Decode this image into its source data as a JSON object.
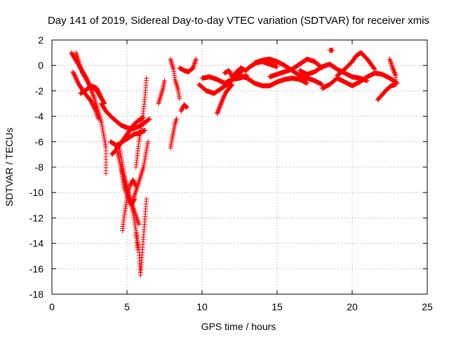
{
  "chart_data": {
    "type": "scatter",
    "title": "Day 141 of 2019, Sidereal Day-to-day VTEC variation (SDTVAR) for receiver xmis",
    "xlabel": "GPS time / hours",
    "ylabel": "SDTVAR / TECUs",
    "xlim": [
      0,
      25
    ],
    "ylim": [
      -18,
      2
    ],
    "xticks": [
      0,
      5,
      10,
      15,
      20,
      25
    ],
    "yticks": [
      2,
      0,
      -2,
      -4,
      -6,
      -8,
      -10,
      -12,
      -14,
      -16,
      -18
    ],
    "grid": true,
    "marker": "+",
    "series": [
      {
        "name": "SDTVAR",
        "color": "#ff0000",
        "segments": [
          {
            "x": [
              1.3,
              1.8,
              2.3,
              2.8,
              3.3,
              3.6,
              3.6
            ],
            "y": [
              1.0,
              0.0,
              -1.0,
              -2.5,
              -4.5,
              -6.5,
              -8.5
            ]
          },
          {
            "x": [
              1.4,
              1.8,
              2.2,
              2.6,
              2.9,
              3.1
            ],
            "y": [
              -0.5,
              -1.5,
              -2.2,
              -2.8,
              -3.5,
              -4.2
            ]
          },
          {
            "x": [
              1.6,
              2.0,
              2.5,
              3.0,
              3.5
            ],
            "y": [
              1.0,
              -0.5,
              -1.5,
              -2.0,
              -3.0
            ]
          },
          {
            "x": [
              1.9,
              2.2,
              2.6,
              3.0,
              3.3
            ],
            "y": [
              -2.2,
              -2.0,
              -1.6,
              -1.8,
              -2.6
            ]
          },
          {
            "x": [
              3.3,
              3.6,
              4.0,
              4.3,
              4.6,
              5.0,
              5.4,
              5.8,
              6.2,
              6.5
            ],
            "y": [
              -3.0,
              -3.6,
              -4.1,
              -4.4,
              -4.7,
              -4.9,
              -5.0,
              -4.8,
              -4.5,
              -4.2
            ]
          },
          {
            "x": [
              3.9,
              4.3,
              4.7,
              5.1,
              5.5,
              5.9,
              6.2
            ],
            "y": [
              -6.0,
              -6.3,
              -6.0,
              -5.7,
              -5.4,
              -5.3,
              -5.1
            ]
          },
          {
            "x": [
              4.0,
              4.3,
              4.6,
              4.9,
              5.2,
              5.5,
              5.8,
              6.1
            ],
            "y": [
              -7.0,
              -6.6,
              -6.1,
              -5.6,
              -5.1,
              -4.6,
              -4.3,
              -4.1
            ]
          },
          {
            "x": [
              4.3,
              4.6,
              4.9,
              5.2,
              5.5,
              5.8
            ],
            "y": [
              -6.5,
              -8.0,
              -9.5,
              -10.5,
              -11.5,
              -12.5
            ]
          },
          {
            "x": [
              4.5,
              4.8,
              5.1,
              5.4,
              5.6,
              5.7
            ],
            "y": [
              -6.5,
              -8.5,
              -10.0,
              -11.5,
              -13.0,
              -14.5
            ]
          },
          {
            "x": [
              4.6,
              4.8,
              5.1,
              5.3,
              5.5
            ],
            "y": [
              -8.0,
              -9.5,
              -10.5,
              -11.0,
              -10.5
            ]
          },
          {
            "x": [
              4.7,
              4.8,
              5.0,
              5.2,
              5.4,
              5.6
            ],
            "y": [
              -13.0,
              -12.0,
              -10.5,
              -9.5,
              -9.0,
              -9.5
            ]
          },
          {
            "x": [
              5.6,
              5.8,
              6.0,
              6.2,
              6.3
            ],
            "y": [
              -8.0,
              -6.0,
              -4.5,
              -2.5,
              -1.0
            ]
          },
          {
            "x": [
              5.6,
              5.8,
              5.9,
              6.1,
              6.3
            ],
            "y": [
              -13.0,
              -14.5,
              -16.5,
              -13.5,
              -10.5
            ]
          },
          {
            "x": [
              5.3,
              5.7,
              6.1,
              6.4
            ],
            "y": [
              -11.0,
              -9.5,
              -8.0,
              -6.0
            ]
          },
          {
            "x": [
              7.1,
              7.2,
              7.4,
              7.5
            ],
            "y": [
              -3.0,
              -2.6,
              -1.8,
              -1.2
            ]
          },
          {
            "x": [
              7.9,
              8.0,
              8.1,
              8.2,
              8.3
            ],
            "y": [
              -6.5,
              -5.8,
              -5.2,
              -4.6,
              -4.2
            ]
          },
          {
            "x": [
              7.9,
              8.1,
              8.2,
              8.4,
              8.5
            ],
            "y": [
              0.5,
              -0.3,
              -1.1,
              -1.9,
              -2.6
            ]
          },
          {
            "x": [
              8.6,
              8.8,
              9.0
            ],
            "y": [
              -3.6,
              -3.1,
              -3.3
            ]
          },
          {
            "x": [
              8.5,
              8.8,
              9.1,
              9.4,
              9.6
            ],
            "y": [
              -0.2,
              -0.4,
              -0.5,
              -0.2,
              0.5
            ]
          },
          {
            "x": [
              10.0,
              10.5,
              11.0,
              11.5,
              12.0,
              12.5,
              13.0
            ],
            "y": [
              -1.0,
              -0.9,
              -1.1,
              -1.4,
              -1.1,
              -1.0,
              -0.8
            ]
          },
          {
            "x": [
              9.8,
              10.3,
              10.8,
              11.3,
              11.8,
              12.3,
              12.7
            ],
            "y": [
              -1.5,
              -2.0,
              -2.2,
              -1.8,
              -1.4,
              -0.8,
              -0.4
            ]
          },
          {
            "x": [
              11.0,
              11.2,
              11.4,
              11.6,
              11.8,
              12.0
            ],
            "y": [
              -3.8,
              -3.2,
              -2.6,
              -2.1,
              -1.8,
              -1.5
            ]
          },
          {
            "x": [
              11.5,
              11.8,
              12.0,
              12.3,
              12.6,
              12.9,
              13.2,
              13.6,
              14.0,
              14.5,
              15.0
            ],
            "y": [
              -0.6,
              -0.4,
              -0.9,
              -0.5,
              -0.2,
              -0.4,
              -0.1,
              0.2,
              0.3,
              0.1,
              -0.1
            ]
          },
          {
            "x": [
              12.5,
              13.0,
              13.5,
              14.0,
              14.5,
              15.0,
              15.5,
              16.0,
              16.5,
              17.0
            ],
            "y": [
              -0.8,
              -1.0,
              -1.4,
              -1.6,
              -1.6,
              -1.3,
              -1.1,
              -1.0,
              -1.1,
              -1.4
            ]
          },
          {
            "x": [
              13.5,
              14.0,
              14.5,
              15.0,
              15.5,
              16.0,
              16.5,
              17.0,
              17.5,
              18.0
            ],
            "y": [
              0.2,
              0.4,
              0.5,
              0.3,
              0.0,
              -0.4,
              -0.8,
              -1.0,
              -1.2,
              -1.5
            ]
          },
          {
            "x": [
              14.5,
              15.0,
              15.5,
              16.0,
              16.5,
              17.0,
              17.5,
              18.0
            ],
            "y": [
              -0.9,
              -0.7,
              -0.5,
              -0.3,
              0.1,
              0.5,
              0.3,
              -0.2
            ]
          },
          {
            "x": [
              16.5,
              17.0,
              17.5,
              18.0,
              18.5,
              19.0,
              19.5,
              20.0,
              20.5,
              21.0
            ],
            "y": [
              -0.4,
              -0.7,
              -0.5,
              -0.1,
              0.1,
              -0.3,
              -0.6,
              -0.9,
              -1.0,
              -1.2
            ]
          },
          {
            "x": [
              18.0,
              18.5,
              19.0,
              19.5,
              20.0,
              20.5,
              21.0,
              21.5,
              22.0,
              22.5,
              23.0
            ],
            "y": [
              -1.8,
              -1.5,
              -1.0,
              -1.3,
              -1.6,
              -1.3,
              -0.9,
              -0.6,
              -0.7,
              -1.0,
              -1.4
            ]
          },
          {
            "x": [
              18.5,
              18.7
            ],
            "y": [
              1.2,
              1.2
            ]
          },
          {
            "x": [
              19.0,
              19.5,
              20.0,
              20.3,
              20.6,
              21.0,
              21.5
            ],
            "y": [
              -0.8,
              -0.3,
              0.3,
              0.8,
              1.0,
              0.5,
              -0.3
            ]
          },
          {
            "x": [
              21.7,
              22.0,
              22.3,
              22.6,
              22.9
            ],
            "y": [
              -2.7,
              -2.3,
              -1.9,
              -1.6,
              -1.5
            ]
          },
          {
            "x": [
              22.5,
              22.7,
              22.9,
              22.9
            ],
            "y": [
              0.5,
              -0.2,
              -0.8,
              -1.3
            ]
          }
        ]
      }
    ]
  }
}
